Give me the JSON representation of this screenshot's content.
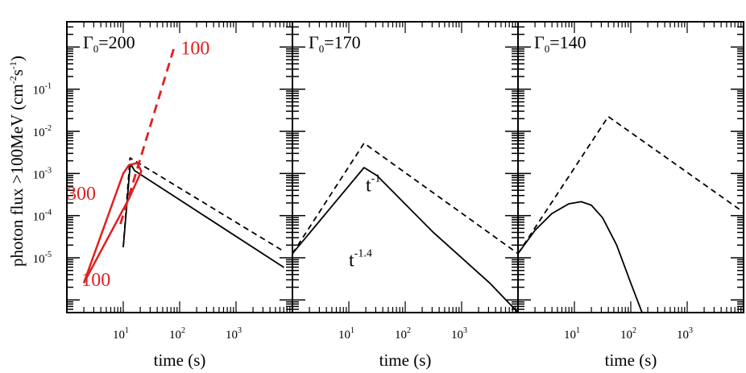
{
  "chart_data": {
    "type": "line",
    "ylabel": "photon flux >100MeV (cm-2s-1)",
    "ylabel_parts": [
      "photon flux >100MeV (cm",
      "-2",
      "s",
      "-1",
      ")"
    ],
    "y_scale": "log",
    "ylim_exp": [
      -6.3,
      0.6
    ],
    "y_tick_labels": [
      {
        "exp": -1,
        "base": "10",
        "power": "-1"
      },
      {
        "exp": -2,
        "base": "10",
        "power": "-2"
      },
      {
        "exp": -3,
        "base": "10",
        "power": "-3"
      },
      {
        "exp": -4,
        "base": "10",
        "power": "-4"
      },
      {
        "exp": -5,
        "base": "10",
        "power": "-5"
      }
    ],
    "x_scale": "log",
    "xlim_exp": [
      0,
      4
    ],
    "x_tick_labels": [
      {
        "exp": 1,
        "base": "10",
        "power": "1"
      },
      {
        "exp": 2,
        "base": "10",
        "power": "2"
      },
      {
        "exp": 3,
        "base": "10",
        "power": "3"
      }
    ],
    "panels": [
      {
        "id": "panel-1",
        "xlabel": "time (s)",
        "title_main": "Γ",
        "title_sub": "0",
        "title_rest": "=200",
        "series": [
          {
            "style": "dashed",
            "color": "#000000",
            "points": [
              [
                1.0,
                -4.75
              ],
              [
                1.12,
                -2.63
              ],
              [
                3.85,
                -4.85
              ]
            ]
          },
          {
            "style": "solid",
            "color": "#000000",
            "points": [
              [
                1.0,
                -4.75
              ],
              [
                1.12,
                -2.84
              ],
              [
                1.15,
                -2.82
              ],
              [
                1.2,
                -2.93
              ],
              [
                3.85,
                -5.23
              ]
            ]
          },
          {
            "style": "dashed",
            "color": "#e02020",
            "points": [
              [
                0.95,
                -4.2
              ],
              [
                1.9,
                -0.02
              ]
            ]
          },
          {
            "style": "solid",
            "color": "#e02020",
            "points": [
              [
                0.3,
                -5.6
              ],
              [
                1.0,
                -3.0
              ],
              [
                1.1,
                -2.8
              ],
              [
                1.25,
                -2.75
              ],
              [
                1.32,
                -2.95
              ],
              [
                1.1,
                -3.6
              ],
              [
                0.3,
                -5.6
              ]
            ]
          }
        ],
        "annotations": [
          {
            "text": "100",
            "color": "#e02020",
            "anchor_log": [
              2.02,
              -0.17
            ]
          },
          {
            "text": "300",
            "color": "#e02020",
            "anchor_log": [
              0.0,
              -3.62
            ]
          },
          {
            "text": "100",
            "color": "#e02020",
            "anchor_log": [
              0.26,
              -5.67
            ]
          }
        ]
      },
      {
        "id": "panel-2",
        "xlabel": "time (s)",
        "title_main": "Γ",
        "title_sub": "0",
        "title_rest": "=170",
        "series": [
          {
            "style": "dashed",
            "color": "#000000",
            "points": [
              [
                0.0,
                -4.9
              ],
              [
                1.27,
                -2.28
              ],
              [
                4.0,
                -4.9
              ]
            ]
          },
          {
            "style": "solid",
            "color": "#000000",
            "points": [
              [
                0.0,
                -4.9
              ],
              [
                1.27,
                -2.86
              ],
              [
                1.5,
                -3.05
              ],
              [
                2.5,
                -4.4
              ],
              [
                3.5,
                -5.6
              ],
              [
                4.0,
                -6.3
              ]
            ]
          }
        ],
        "annotations": [
          {
            "text": "t",
            "sup": "-1",
            "color": "#000000",
            "anchor_log": [
              1.3,
              -3.42
            ]
          },
          {
            "text": "t",
            "sup": "-1.4",
            "color": "#000000",
            "anchor_log": [
              1.0,
              -5.2
            ]
          }
        ]
      },
      {
        "id": "panel-3",
        "xlabel": "time (s)",
        "title_main": "Γ",
        "title_sub": "0",
        "title_rest": "=140",
        "series": [
          {
            "style": "dashed",
            "color": "#000000",
            "points": [
              [
                0.0,
                -4.9
              ],
              [
                1.6,
                -1.65
              ],
              [
                4.0,
                -3.92
              ]
            ]
          },
          {
            "style": "solid",
            "color": "#000000",
            "points": [
              [
                0.0,
                -4.9
              ],
              [
                0.3,
                -4.35
              ],
              [
                0.6,
                -3.95
              ],
              [
                0.9,
                -3.72
              ],
              [
                1.12,
                -3.67
              ],
              [
                1.3,
                -3.75
              ],
              [
                1.5,
                -4.05
              ],
              [
                1.75,
                -4.7
              ],
              [
                2.0,
                -5.6
              ],
              [
                2.2,
                -6.3
              ]
            ]
          }
        ],
        "annotations": []
      }
    ]
  }
}
